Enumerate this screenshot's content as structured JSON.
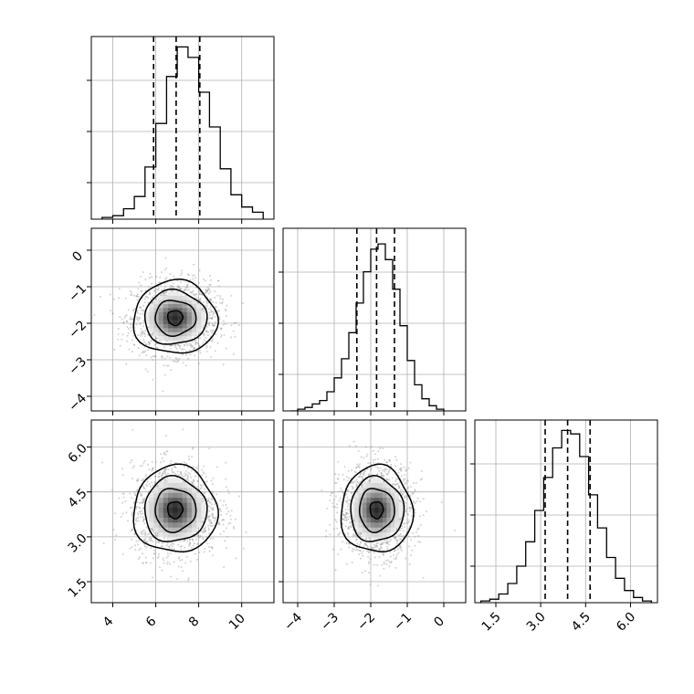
{
  "chart_data": {
    "type": "corner",
    "grid": true,
    "colors": {
      "line": "#000000",
      "grid": "#b0b0b0",
      "scatter": "#9a9a9a",
      "background": "#ffffff"
    },
    "variables": [
      {
        "range": [
          3.0,
          11.5
        ],
        "ticks": [
          4,
          6,
          8,
          10
        ],
        "tick_labels": [
          "4",
          "6",
          "8",
          "10"
        ],
        "quantiles": [
          5.9,
          6.95,
          8.05
        ]
      },
      {
        "range": [
          -4.4,
          0.6
        ],
        "ticks": [
          -4,
          -3,
          -2,
          -1,
          0
        ],
        "tick_labels": [
          "−4",
          "−3",
          "−2",
          "−1",
          "0"
        ],
        "quantiles": [
          -2.38,
          -1.84,
          -1.35
        ]
      },
      {
        "range": [
          0.8,
          6.9
        ],
        "ticks": [
          1.5,
          3.0,
          4.5,
          6.0
        ],
        "tick_labels": [
          "1.5",
          "3.0",
          "4.5",
          "6.0"
        ],
        "quantiles": [
          3.15,
          3.9,
          4.65
        ]
      }
    ],
    "histograms": [
      {
        "variable": 0,
        "bin_edges": [
          3.5,
          4.0,
          4.5,
          5.0,
          5.5,
          6.0,
          6.5,
          7.0,
          7.5,
          8.0,
          8.5,
          9.0,
          9.5,
          10.0,
          10.5,
          11.0
        ],
        "counts": [
          0.01,
          0.02,
          0.06,
          0.13,
          0.3,
          0.55,
          0.82,
          0.99,
          0.93,
          0.73,
          0.53,
          0.29,
          0.14,
          0.07,
          0.04
        ],
        "ymax": 1.05
      },
      {
        "variable": 1,
        "bin_edges": [
          -4.2,
          -4.0,
          -3.8,
          -3.6,
          -3.4,
          -3.2,
          -3.0,
          -2.8,
          -2.6,
          -2.4,
          -2.2,
          -2.0,
          -1.8,
          -1.6,
          -1.4,
          -1.2,
          -1.0,
          -0.8,
          -0.6,
          -0.4,
          -0.2,
          0.0
        ],
        "counts": [
          0.0,
          0.01,
          0.02,
          0.04,
          0.06,
          0.11,
          0.19,
          0.3,
          0.45,
          0.62,
          0.8,
          0.93,
          0.96,
          0.87,
          0.7,
          0.49,
          0.29,
          0.15,
          0.07,
          0.03,
          0.01
        ],
        "ymax": 1.05
      },
      {
        "variable": 2,
        "bin_edges": [
          1.0,
          1.3,
          1.6,
          1.9,
          2.2,
          2.5,
          2.8,
          3.1,
          3.4,
          3.7,
          4.0,
          4.3,
          4.6,
          4.9,
          5.2,
          5.5,
          5.8,
          6.1,
          6.4,
          6.7
        ],
        "counts": [
          0.01,
          0.02,
          0.05,
          0.11,
          0.21,
          0.35,
          0.53,
          0.72,
          0.89,
          0.99,
          0.97,
          0.84,
          0.62,
          0.43,
          0.26,
          0.14,
          0.07,
          0.03,
          0.01
        ],
        "ymax": 1.05
      }
    ],
    "pairs": [
      {
        "x": 0,
        "y": 1,
        "center": [
          6.9,
          -1.85
        ],
        "spread": [
          1.0,
          0.5
        ],
        "contour_levels": [
          {
            "rx": 1.95,
            "ry": 1.0
          },
          {
            "rx": 1.45,
            "ry": 0.74
          },
          {
            "rx": 0.95,
            "ry": 0.48
          },
          {
            "rx": 0.35,
            "ry": 0.2
          }
        ]
      },
      {
        "x": 0,
        "y": 2,
        "center": [
          6.9,
          3.9
        ],
        "spread": [
          1.0,
          0.75
        ],
        "contour_levels": [
          {
            "rx": 1.95,
            "ry": 1.45
          },
          {
            "rx": 1.45,
            "ry": 1.08
          },
          {
            "rx": 0.95,
            "ry": 0.72
          },
          {
            "rx": 0.35,
            "ry": 0.28
          }
        ]
      },
      {
        "x": 1,
        "y": 2,
        "center": [
          -1.84,
          3.9
        ],
        "spread": [
          0.5,
          0.75
        ],
        "contour_levels": [
          {
            "rx": 0.98,
            "ry": 1.45
          },
          {
            "rx": 0.73,
            "ry": 1.08
          },
          {
            "rx": 0.48,
            "ry": 0.72
          },
          {
            "rx": 0.18,
            "ry": 0.28
          }
        ]
      }
    ]
  }
}
